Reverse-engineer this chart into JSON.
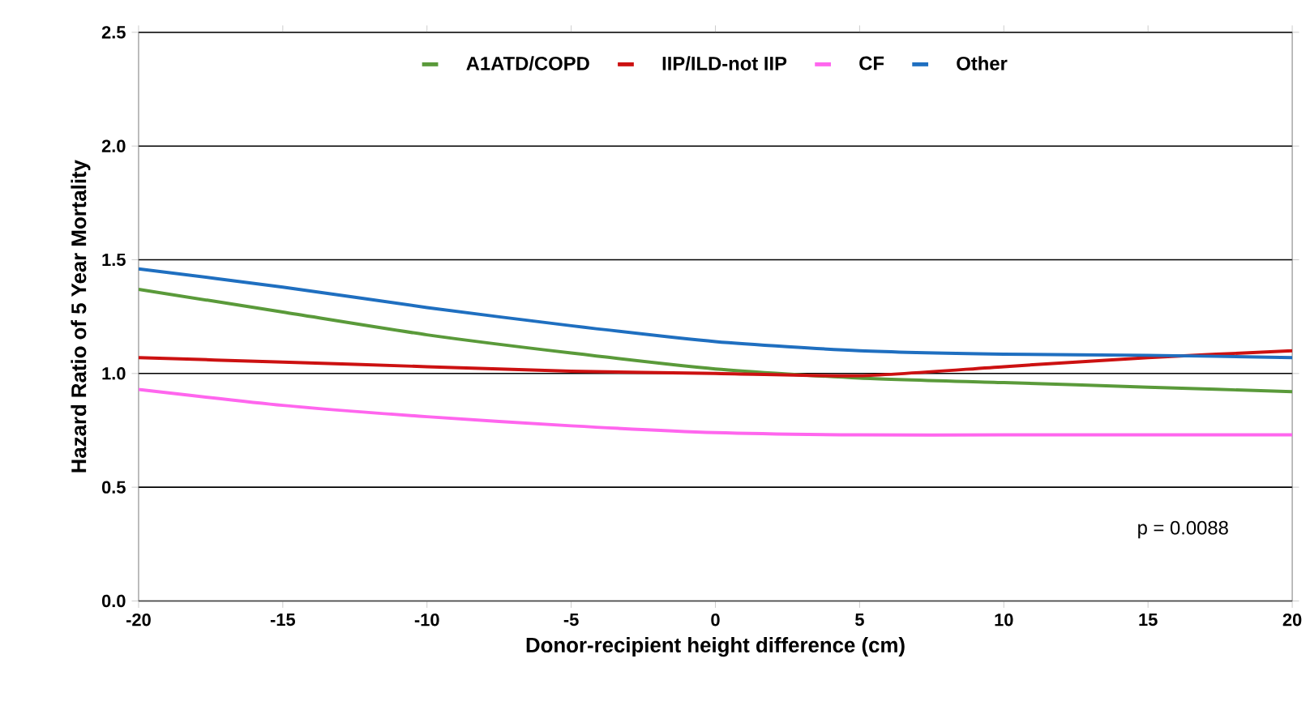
{
  "chart_data": {
    "type": "line",
    "xlabel": "Donor-recipient height difference (cm)",
    "ylabel": "Hazard Ratio of 5 Year Mortality",
    "x": [
      -20,
      -15,
      -10,
      -5,
      0,
      5,
      10,
      15,
      20
    ],
    "series": [
      {
        "name": "A1ATD/COPD",
        "color": "#5a9a3a",
        "values": [
          1.37,
          1.27,
          1.17,
          1.09,
          1.02,
          0.98,
          0.96,
          0.94,
          0.92
        ]
      },
      {
        "name": "IIP/ILD-not IIP",
        "color": "#cc1111",
        "values": [
          1.07,
          1.05,
          1.03,
          1.01,
          1.0,
          0.99,
          1.03,
          1.07,
          1.1
        ]
      },
      {
        "name": "CF",
        "color": "#ff66ee",
        "values": [
          0.93,
          0.86,
          0.81,
          0.77,
          0.74,
          0.73,
          0.73,
          0.73,
          0.73
        ]
      },
      {
        "name": "Other",
        "color": "#1f6fc0",
        "values": [
          1.46,
          1.38,
          1.29,
          1.21,
          1.14,
          1.1,
          1.085,
          1.08,
          1.07
        ]
      }
    ],
    "xlim": [
      -20,
      20
    ],
    "ylim": [
      0,
      2.5
    ],
    "xticks": [
      -20,
      -15,
      -10,
      -5,
      0,
      5,
      10,
      15,
      20
    ],
    "yticks": [
      {
        "value": 0,
        "label": "0.0"
      },
      {
        "value": 0.5,
        "label": "0.5"
      },
      {
        "value": 1,
        "label": "1.0"
      },
      {
        "value": 1.5,
        "label": "1.5"
      },
      {
        "value": 2,
        "label": "2.0"
      },
      {
        "value": 2.5,
        "label": "2.5"
      }
    ],
    "grid": "y",
    "legend": "top",
    "marker": "none",
    "line_style": "solid",
    "annotations": [
      "p = 0.0088"
    ]
  }
}
